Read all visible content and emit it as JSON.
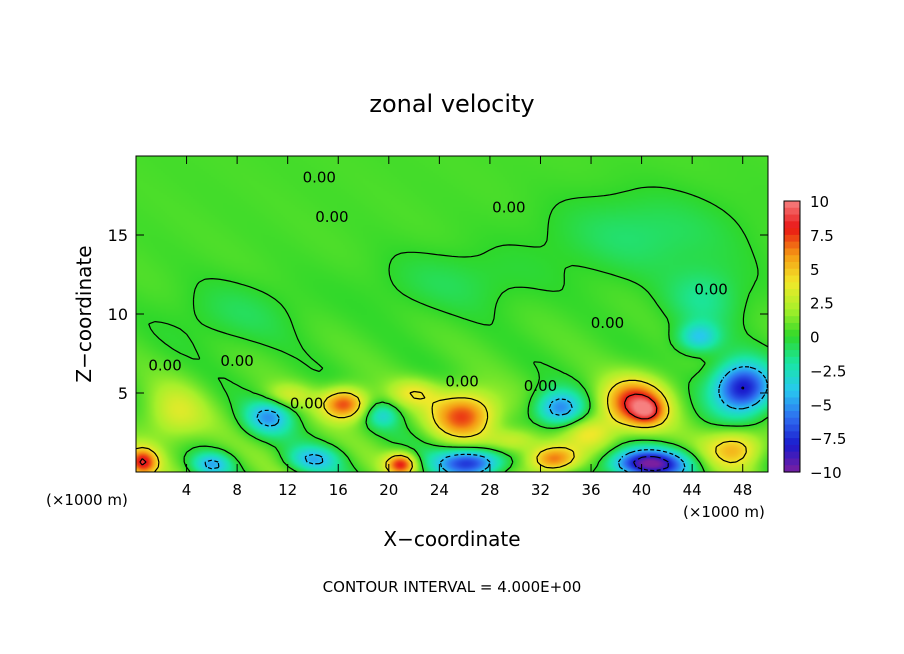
{
  "chart_data": {
    "type": "heatmap",
    "title": "zonal velocity",
    "xlabel": "X−coordinate",
    "ylabel": "Z−coordinate",
    "x_unit_left": "(×1000 m)",
    "x_unit_right": "(×1000 m)",
    "footer": "CONTOUR INTERVAL = 4.000E+00",
    "xlim": [
      0,
      50
    ],
    "ylim": [
      0,
      20
    ],
    "x_ticks": [
      4,
      8,
      12,
      16,
      20,
      24,
      28,
      32,
      36,
      40,
      44,
      48
    ],
    "y_ticks": [
      5,
      10,
      15
    ],
    "grid": false,
    "colorbar": {
      "min": -10,
      "max": 10,
      "tick_values": [
        10,
        7.5,
        5,
        2.5,
        0,
        -2.5,
        -5,
        -7.5,
        -10
      ],
      "tick_labels": [
        "10",
        "7.5",
        "5",
        "2.5",
        "0",
        "−2.5",
        "−5",
        "−7.5",
        "−10"
      ],
      "colors": [
        "#7a1fa0",
        "#1a1acd",
        "#2e6ef0",
        "#28c8f0",
        "#19e6a5",
        "#2fd82a",
        "#a8f02a",
        "#f2e82a",
        "#f59a14",
        "#e81414",
        "#f68080"
      ]
    },
    "contour_labels": [
      {
        "text": "0.00",
        "x": 14.5,
        "y": 18.7
      },
      {
        "text": "0.00",
        "x": 15.5,
        "y": 16.2
      },
      {
        "text": "0.00",
        "x": 29.5,
        "y": 16.8
      },
      {
        "text": "0.00",
        "x": 45.5,
        "y": 11.6
      },
      {
        "text": "0.00",
        "x": 37.3,
        "y": 9.5
      },
      {
        "text": "0.00",
        "x": 8.0,
        "y": 7.1
      },
      {
        "text": "0.00",
        "x": 2.3,
        "y": 6.8
      },
      {
        "text": "0.00",
        "x": 25.8,
        "y": 5.8
      },
      {
        "text": "0.00",
        "x": 32.0,
        "y": 5.5
      },
      {
        "text": "0.00",
        "x": 13.5,
        "y": 4.4
      }
    ],
    "features": [
      {
        "x": 39.5,
        "y": 4.3,
        "sx": 2.6,
        "sy": 1.6,
        "value": 8
      },
      {
        "x": 40.5,
        "y": 3.8,
        "sx": 1.2,
        "sy": 0.8,
        "value": 3
      },
      {
        "x": 26.0,
        "y": 3.6,
        "sx": 2.6,
        "sy": 1.5,
        "value": 7
      },
      {
        "x": 16.5,
        "y": 4.3,
        "sx": 1.8,
        "sy": 1.0,
        "value": 7
      },
      {
        "x": 3.0,
        "y": 3.5,
        "sx": 2.5,
        "sy": 2.0,
        "value": 3
      },
      {
        "x": 33.5,
        "y": 4.0,
        "sx": 1.9,
        "sy": 1.1,
        "value": -6
      },
      {
        "x": 10.5,
        "y": 3.5,
        "sx": 1.8,
        "sy": 1.1,
        "value": -5
      },
      {
        "x": 48.0,
        "y": 5.3,
        "sx": 2.3,
        "sy": 1.6,
        "value": -9
      },
      {
        "x": 44.5,
        "y": 8.5,
        "sx": 1.6,
        "sy": 0.9,
        "value": -4
      },
      {
        "x": 26.5,
        "y": 0.6,
        "sx": 2.6,
        "sy": 0.9,
        "value": -8
      },
      {
        "x": 40.5,
        "y": 0.5,
        "sx": 3.0,
        "sy": 0.9,
        "value": -10
      },
      {
        "x": 33.0,
        "y": 0.8,
        "sx": 2.0,
        "sy": 0.9,
        "value": 7
      },
      {
        "x": 21.0,
        "y": 0.5,
        "sx": 1.2,
        "sy": 0.7,
        "value": 7
      },
      {
        "x": 0.5,
        "y": 0.6,
        "sx": 1.2,
        "sy": 0.9,
        "value": 7
      },
      {
        "x": 47.5,
        "y": 1.5,
        "sx": 2.3,
        "sy": 1.2,
        "value": 5
      },
      {
        "x": 14.0,
        "y": 0.8,
        "sx": 2.0,
        "sy": 0.8,
        "value": -4
      },
      {
        "x": 6.0,
        "y": 0.5,
        "sx": 1.5,
        "sy": 0.7,
        "value": -4
      },
      {
        "x": 19.5,
        "y": 3.6,
        "sx": 1.3,
        "sy": 0.8,
        "value": -3
      },
      {
        "x": 30.0,
        "y": 2.0,
        "sx": 2.0,
        "sy": 0.8,
        "value": 3
      },
      {
        "x": 36.0,
        "y": 2.5,
        "sx": 2.0,
        "sy": 1.0,
        "value": 3
      },
      {
        "x": 22.0,
        "y": 5.0,
        "sx": 2.0,
        "sy": 0.9,
        "value": 3
      },
      {
        "x": 12.0,
        "y": 4.8,
        "sx": 2.0,
        "sy": 0.8,
        "value": 2.5
      },
      {
        "x": 40.0,
        "y": 15.0,
        "sx": 7.0,
        "sy": 2.5,
        "value": -1.5
      },
      {
        "x": 45.0,
        "y": 11.0,
        "sx": 3.0,
        "sy": 2.0,
        "value": -2
      },
      {
        "x": 8.0,
        "y": 10.0,
        "sx": 5.0,
        "sy": 2.0,
        "value": -1
      },
      {
        "x": 25.0,
        "y": 12.0,
        "sx": 6.0,
        "sy": 2.0,
        "value": -1
      }
    ]
  }
}
